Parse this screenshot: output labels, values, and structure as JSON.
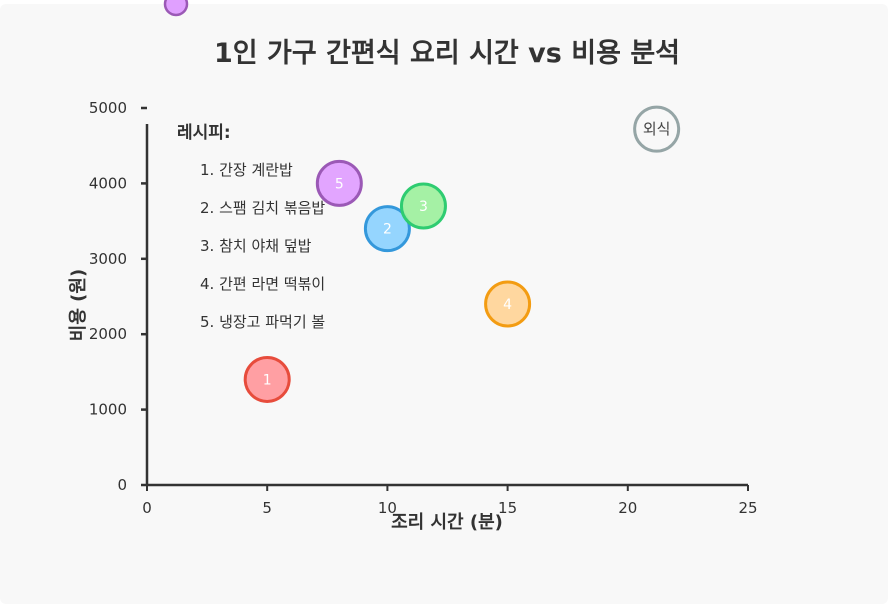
{
  "chart_data": {
    "type": "scatter",
    "title": "1인 가구 간편식 요리 시간 vs 비용 분석",
    "xlabel": "조리 시간 (분)",
    "ylabel": "비용 (원)",
    "xlim": [
      0,
      25
    ],
    "ylim": [
      0,
      5000
    ],
    "x_ticks": [
      "0",
      "5",
      "10",
      "15",
      "20",
      "25"
    ],
    "y_ticks": [
      "0",
      "1000",
      "2000",
      "3000",
      "4000",
      "5000"
    ],
    "grid": false,
    "legend_placement": "top-left",
    "legend": {
      "title": "레시피:",
      "items": [
        "1. 간장 계란밥",
        "2. 스팸 김치 볶음밥",
        "3. 참치 야채 덮밥",
        "4. 간편 라면 떡볶이",
        "5. 냉장고 파먹기 볼"
      ]
    },
    "points": [
      {
        "label": "1",
        "x": 5,
        "y": 1400,
        "fill": "#ff9a9e",
        "stroke": "#e74c3c"
      },
      {
        "label": "2",
        "x": 10,
        "y": 3400,
        "fill": "#8fd3fe",
        "stroke": "#3498db"
      },
      {
        "label": "3",
        "x": 11.5,
        "y": 3700,
        "fill": "#a0f0a0",
        "stroke": "#2ecc71"
      },
      {
        "label": "4",
        "x": 15,
        "y": 2400,
        "fill": "#ffd59a",
        "stroke": "#f39c12"
      },
      {
        "label": "5",
        "x": 8,
        "y": 4000,
        "fill": "#e0a0ff",
        "stroke": "#9b59b6"
      },
      {
        "label": "외식",
        "x": 21.2,
        "y": 4720,
        "fill": "#f8f8f8",
        "stroke": "#95a5a6"
      }
    ],
    "extra_marker": {
      "fill": "#e0a0ff",
      "stroke": "#9b59b6"
    }
  }
}
